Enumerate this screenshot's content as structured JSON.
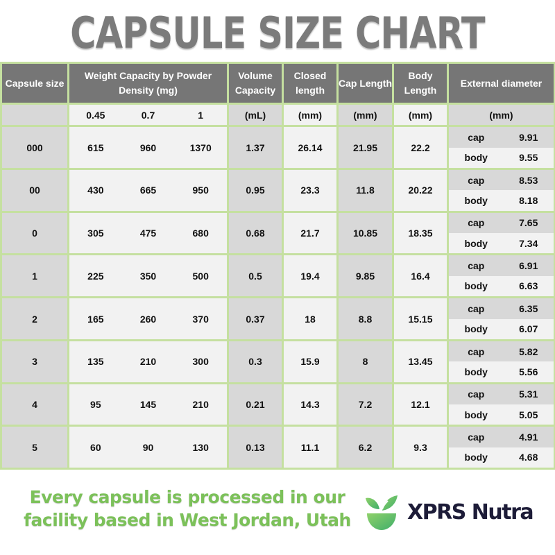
{
  "title": "CAPSULE SIZE CHART",
  "table": {
    "headers": {
      "capsule_size": "Capsule size",
      "weight": "Weight Capacity by Powder Density (mg)",
      "volume": "Volume Capacity",
      "closed": "Closed length",
      "cap": "Cap Length",
      "body": "Body Length",
      "external": "External diameter"
    },
    "units": {
      "capsule_size": "",
      "density_045": "0.45",
      "density_07": "0.7",
      "density_1": "1",
      "volume": "(mL)",
      "closed": "(mm)",
      "cap": "(mm)",
      "body": "(mm)",
      "external": "(mm)"
    },
    "sub_labels": {
      "cap": "cap",
      "body": "body"
    },
    "rows": [
      {
        "size": "000",
        "w045": "615",
        "w07": "960",
        "w1": "1370",
        "volume": "1.37",
        "closed": "26.14",
        "cap_len": "21.95",
        "body_len": "22.2",
        "ext_cap": "9.91",
        "ext_body": "9.55"
      },
      {
        "size": "00",
        "w045": "430",
        "w07": "665",
        "w1": "950",
        "volume": "0.95",
        "closed": "23.3",
        "cap_len": "11.8",
        "body_len": "20.22",
        "ext_cap": "8.53",
        "ext_body": "8.18"
      },
      {
        "size": "0",
        "w045": "305",
        "w07": "475",
        "w1": "680",
        "volume": "0.68",
        "closed": "21.7",
        "cap_len": "10.85",
        "body_len": "18.35",
        "ext_cap": "7.65",
        "ext_body": "7.34"
      },
      {
        "size": "1",
        "w045": "225",
        "w07": "350",
        "w1": "500",
        "volume": "0.5",
        "closed": "19.4",
        "cap_len": "9.85",
        "body_len": "16.4",
        "ext_cap": "6.91",
        "ext_body": "6.63"
      },
      {
        "size": "2",
        "w045": "165",
        "w07": "260",
        "w1": "370",
        "volume": "0.37",
        "closed": "18",
        "cap_len": "8.8",
        "body_len": "15.15",
        "ext_cap": "6.35",
        "ext_body": "6.07"
      },
      {
        "size": "3",
        "w045": "135",
        "w07": "210",
        "w1": "300",
        "volume": "0.3",
        "closed": "15.9",
        "cap_len": "8",
        "body_len": "13.45",
        "ext_cap": "5.82",
        "ext_body": "5.56"
      },
      {
        "size": "4",
        "w045": "95",
        "w07": "145",
        "w1": "210",
        "volume": "0.21",
        "closed": "14.3",
        "cap_len": "7.2",
        "body_len": "12.1",
        "ext_cap": "5.31",
        "ext_body": "5.05"
      },
      {
        "size": "5",
        "w045": "60",
        "w07": "90",
        "w1": "130",
        "volume": "0.13",
        "closed": "11.1",
        "cap_len": "6.2",
        "body_len": "9.3",
        "ext_cap": "4.91",
        "ext_body": "4.68"
      }
    ]
  },
  "footer": {
    "line1": "Every capsule is processed in our",
    "line2": "facility based in West Jordan, Utah",
    "brand": "XPRS Nutra",
    "logo_icon": "leaf-bowl-icon"
  },
  "colors": {
    "title": "#7b7b7b",
    "header_bg": "#767676",
    "grid_border": "#c5e0a0",
    "cell_dark": "#d8d8d8",
    "cell_light": "#f2f2f2",
    "footer_text": "#7cc15a",
    "brand_text": "#1d1c38"
  },
  "chart_data": {
    "type": "table",
    "title": "CAPSULE SIZE CHART",
    "columns": [
      "Capsule size",
      "Weight @0.45 g/mL (mg)",
      "Weight @0.7 g/mL (mg)",
      "Weight @1 g/mL (mg)",
      "Volume Capacity (mL)",
      "Closed length (mm)",
      "Cap Length (mm)",
      "Body Length (mm)",
      "External diameter cap (mm)",
      "External diameter body (mm)"
    ],
    "rows": [
      [
        "000",
        615,
        960,
        1370,
        1.37,
        26.14,
        21.95,
        22.2,
        9.91,
        9.55
      ],
      [
        "00",
        430,
        665,
        950,
        0.95,
        23.3,
        11.8,
        20.22,
        8.53,
        8.18
      ],
      [
        "0",
        305,
        475,
        680,
        0.68,
        21.7,
        10.85,
        18.35,
        7.65,
        7.34
      ],
      [
        "1",
        225,
        350,
        500,
        0.5,
        19.4,
        9.85,
        16.4,
        6.91,
        6.63
      ],
      [
        "2",
        165,
        260,
        370,
        0.37,
        18,
        8.8,
        15.15,
        6.35,
        6.07
      ],
      [
        "3",
        135,
        210,
        300,
        0.3,
        15.9,
        8,
        13.45,
        5.82,
        5.56
      ],
      [
        "4",
        95,
        145,
        210,
        0.21,
        14.3,
        7.2,
        12.1,
        5.31,
        5.05
      ],
      [
        "5",
        60,
        90,
        130,
        0.13,
        11.1,
        6.2,
        9.3,
        4.91,
        4.68
      ]
    ]
  }
}
